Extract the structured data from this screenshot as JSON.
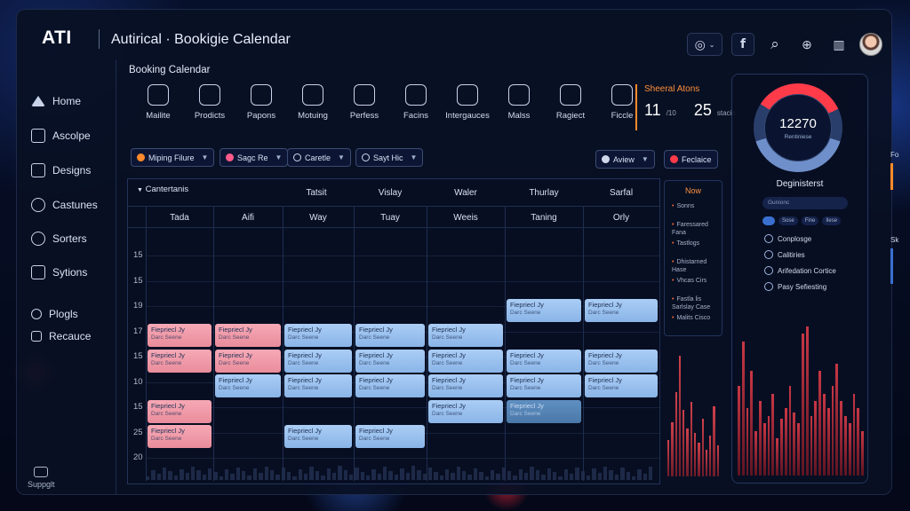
{
  "header": {
    "logo": "ATI",
    "title": "Autirical · Bookigie Calendar",
    "icons": [
      {
        "name": "globe-icon",
        "glyph": "◎"
      },
      {
        "name": "facebook-icon",
        "glyph": "f"
      },
      {
        "name": "search-icon",
        "glyph": "⌕"
      },
      {
        "name": "world-icon",
        "glyph": "⊕"
      },
      {
        "name": "stats-icon",
        "glyph": "▥"
      }
    ]
  },
  "sidebar": {
    "items": [
      {
        "label": "Home"
      },
      {
        "label": "Ascolpe"
      },
      {
        "label": "Designs"
      },
      {
        "label": "Castunes"
      },
      {
        "label": "Sorters"
      },
      {
        "label": "Sytions"
      },
      {
        "label": "Plogls"
      },
      {
        "label": "Recauce"
      }
    ],
    "support": "Suppglt"
  },
  "toolbar": {
    "title": "Booking Calendar",
    "tools": [
      "Mailite",
      "Prodicts",
      "Papons",
      "Motuing",
      "Perfess",
      "Facins",
      "Intergauces",
      "Malss",
      "Ragiect",
      "Ficcle"
    ]
  },
  "stats": {
    "title": "Sheeral Atons",
    "value1": "11",
    "unit1": "/10",
    "value2": "25",
    "unit2": "stacie"
  },
  "filters": [
    {
      "label": "Miping Filure",
      "dot": "#ff8a2a"
    },
    {
      "label": "Sagc Re",
      "dot": "#ff5a8a"
    },
    {
      "label": "Caretle",
      "dot": ""
    },
    {
      "label": "Sayt Hic",
      "dot": ""
    },
    {
      "label": "Aview",
      "dot": "#cfd8ea"
    },
    {
      "label": "Feclaice",
      "dot": "#ff3b4a"
    }
  ],
  "calendar": {
    "category_label": "Cantertanis",
    "top_headers": [
      "Tatsit",
      "Vislay",
      "Waler",
      "Thurlay",
      "Sarfal"
    ],
    "day_headers": [
      "Tada",
      "Aifi",
      "Way",
      "Tuay",
      "Weeis",
      "Taning",
      "Orly"
    ],
    "hours": [
      "15",
      "15",
      "19",
      "17",
      "15",
      "10",
      "15",
      "25",
      "20"
    ],
    "event_title": "Fiepriecl Jy",
    "event_sub": "Darc Seene",
    "events": [
      {
        "col": 5,
        "row": 1,
        "color": "blue"
      },
      {
        "col": 6,
        "row": 1,
        "color": "blue"
      },
      {
        "col": 0,
        "row": 2,
        "color": "pink"
      },
      {
        "col": 1,
        "row": 2,
        "color": "pink"
      },
      {
        "col": 2,
        "row": 2,
        "color": "blue"
      },
      {
        "col": 3,
        "row": 2,
        "color": "blue"
      },
      {
        "col": 4,
        "row": 2,
        "color": "blue"
      },
      {
        "col": 0,
        "row": 3,
        "color": "pink"
      },
      {
        "col": 1,
        "row": 3,
        "color": "pink"
      },
      {
        "col": 2,
        "row": 3,
        "color": "blue"
      },
      {
        "col": 3,
        "row": 3,
        "color": "blue"
      },
      {
        "col": 4,
        "row": 3,
        "color": "blue"
      },
      {
        "col": 5,
        "row": 3,
        "color": "blue"
      },
      {
        "col": 6,
        "row": 3,
        "color": "blue"
      },
      {
        "col": 1,
        "row": 4,
        "color": "blue"
      },
      {
        "col": 2,
        "row": 4,
        "color": "blue"
      },
      {
        "col": 3,
        "row": 4,
        "color": "blue"
      },
      {
        "col": 4,
        "row": 4,
        "color": "blue"
      },
      {
        "col": 5,
        "row": 4,
        "color": "blue"
      },
      {
        "col": 6,
        "row": 4,
        "color": "blue"
      },
      {
        "col": 0,
        "row": 5,
        "color": "pink"
      },
      {
        "col": 4,
        "row": 5,
        "color": "blue"
      },
      {
        "col": 5,
        "row": 5,
        "color": "teal"
      },
      {
        "col": 0,
        "row": 6,
        "color": "pink"
      },
      {
        "col": 2,
        "row": 6,
        "color": "blue"
      },
      {
        "col": 3,
        "row": 6,
        "color": "blue"
      }
    ]
  },
  "now_panel": {
    "title": "Now",
    "items": [
      "Sonns",
      "Faressared Fana",
      "Tastlogs",
      "Dhistarned Hase",
      "Vhcas Cirs",
      "Fastla lis Sarlslay Case",
      "Malits Cisco"
    ]
  },
  "right_panel": {
    "gauge_value": "12270",
    "gauge_sub": "Rentiniese",
    "title": "Deginisterst",
    "search_placeholder": "Gunionc",
    "chips": [
      "Sose",
      "Fine",
      "Ilese"
    ],
    "items": [
      "Conplosge",
      "Calitiries",
      "Arifedation Cortice",
      "Pasy Sefiesting"
    ]
  },
  "edge": {
    "label1": "Fo",
    "label2": "Sk"
  },
  "colors": {
    "accent": "#ff8a2a",
    "pink_event": "#f7a9b6",
    "blue_event": "#aacdf5",
    "bars": "#c93745"
  }
}
